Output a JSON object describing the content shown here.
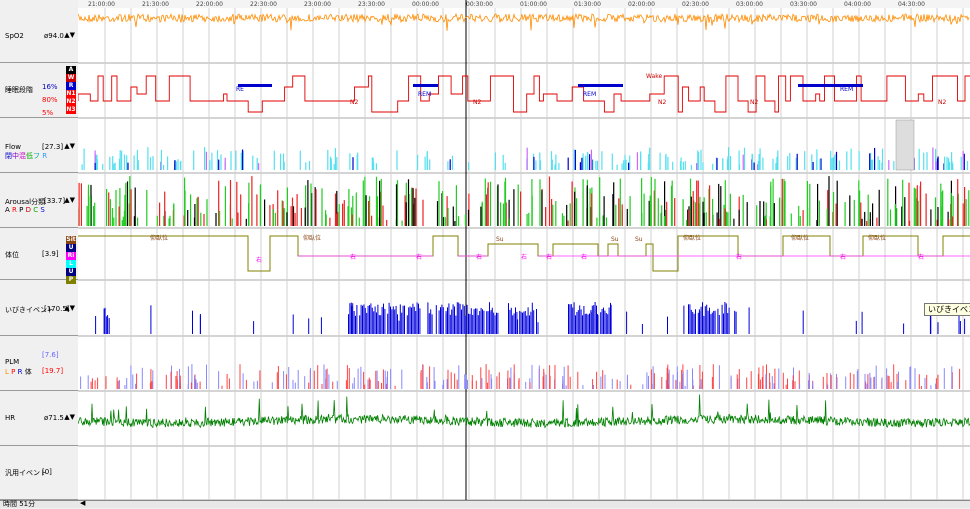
{
  "channels": [
    {
      "key": "spo2",
      "name": "SpO2",
      "value": "ø94.0",
      "top": "100",
      "bottom": "0"
    },
    {
      "key": "stage",
      "name": "睡眠段階",
      "pct": [
        "16%",
        "80%",
        "5%"
      ],
      "stages": [
        "A",
        "W",
        "R",
        "N1",
        "N2",
        "N3"
      ],
      "stage_colors": [
        "#000000",
        "#cc0000",
        "#0000cc",
        "#ff0000",
        "#ff0000",
        "#ff0000"
      ]
    },
    {
      "key": "flow",
      "name": "Flow",
      "value": "[27.3]",
      "legend": [
        "閉",
        "中",
        "混",
        "低",
        "フ",
        "R"
      ],
      "top": "66",
      "bottom": "0"
    },
    {
      "key": "arousal",
      "name": "Arousal分類",
      "value": "[33.7]",
      "legend": [
        "A",
        "R",
        "P",
        "D",
        "C",
        "S"
      ],
      "top": "30",
      "bottom": "0"
    },
    {
      "key": "position",
      "name": "体位",
      "value": "[3.9]",
      "boxes": [
        "Sit",
        "U",
        "Ri",
        "L",
        "U",
        "P"
      ],
      "box_colors": [
        "#8b4513",
        "#000080",
        "#ff00ff",
        "#00ffff",
        "#000080",
        "#808000"
      ]
    },
    {
      "key": "snore",
      "name": "いびきイベント",
      "value": "[170.5]",
      "top": "100",
      "bottom": "0"
    },
    {
      "key": "plm",
      "name": "PLM",
      "values": [
        "[7.6]",
        "[19.7]"
      ],
      "legend": [
        "L",
        "P",
        "R",
        "体"
      ],
      "top": "256",
      "bottom": "0"
    },
    {
      "key": "hr",
      "name": "HR",
      "value": "ø71.5",
      "top": "109",
      "bottom": "33"
    },
    {
      "key": "general",
      "name": "汎用イベント",
      "value": "[0]"
    }
  ],
  "stage_annotations": [
    "RE",
    "N2",
    "REM",
    "N2",
    "REM",
    "Wake",
    "N2",
    "N2",
    "REM",
    "N2"
  ],
  "position_annotations": [
    "仰臥位",
    "右",
    "仰臥位",
    "右",
    "右",
    "Su",
    "右",
    "右",
    "右",
    "右",
    "Su",
    "Su",
    "仰臥位",
    "右",
    "仰臥位",
    "右",
    "仰臥位",
    "右"
  ],
  "tooltip": "いびきイベント",
  "bottom_label": "時間 51分",
  "time_labels": [
    "21:00:00",
    "21:30:00",
    "22:00:00",
    "22:30:00",
    "23:00:00",
    "23:30:00",
    "00:00:00",
    "00:30:00",
    "01:00:00",
    "01:30:00",
    "02:00:00",
    "02:30:00",
    "03:00:00",
    "03:30:00",
    "04:00:00",
    "04:30:00"
  ],
  "colors": {
    "spo2": "#ff8c00",
    "stage": "#e00000",
    "rem": "#0000cc",
    "flow": "#55e0f0",
    "arousal_green": "#22cc22",
    "arousal_red": "#ee2222",
    "position": "#ff44ff",
    "snore": "#0000dd",
    "hr": "#008000",
    "plm_red": "#ff4444",
    "plm_blue": "#8888ff"
  }
}
